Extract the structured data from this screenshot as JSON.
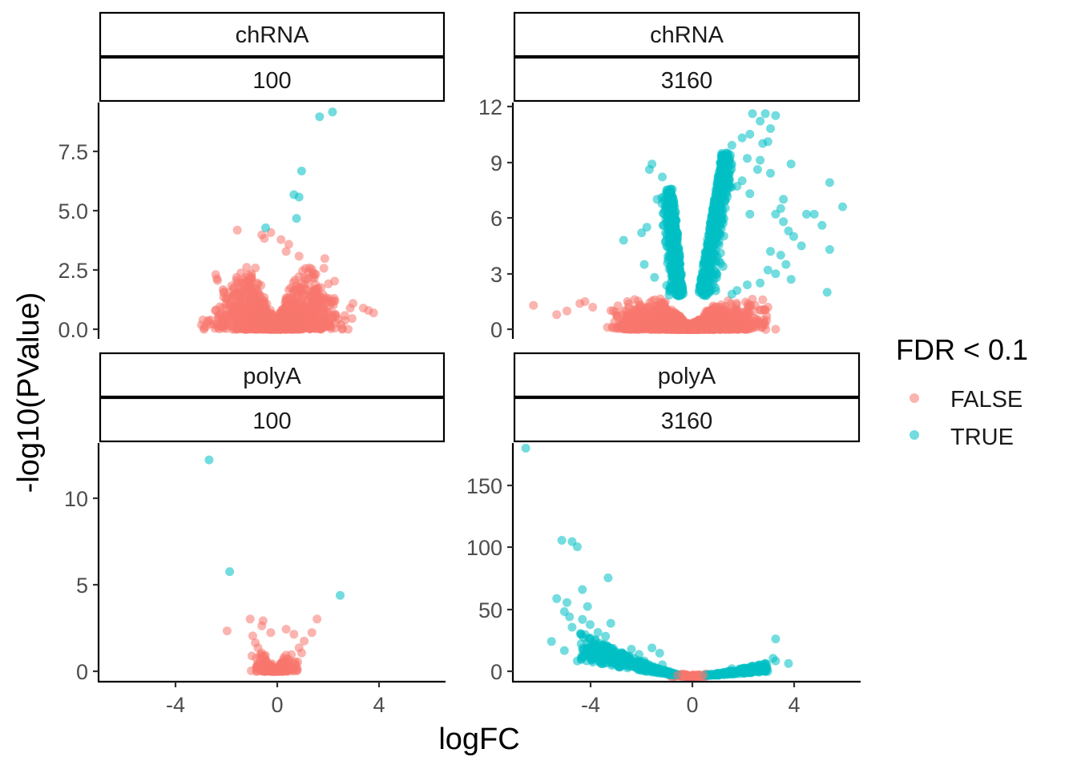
{
  "chart_data": {
    "type": "scatter",
    "xlabel": "logFC",
    "ylabel": "-log10(PValue)",
    "legend": {
      "title": "FDR < 0.1",
      "placement": "right",
      "entries": [
        {
          "label": "FALSE",
          "color": "#F8766D"
        },
        {
          "label": "TRUE",
          "color": "#00BFC4"
        }
      ]
    },
    "xlim": [
      -6.9,
      6.6
    ],
    "xticks": [
      -4,
      0,
      4
    ],
    "xtick_labels": [
      "-4",
      "0",
      "4"
    ],
    "grid": false,
    "point_alpha": 0.55,
    "panels": [
      {
        "strip_top": "chRNA",
        "strip_bottom": "100",
        "ylim": [
          -0.4,
          9.6
        ],
        "yticks": [
          0,
          2.5,
          5,
          7.5
        ],
        "ytick_labels": [
          "0.0",
          "2.5",
          "5.0",
          "7.5"
        ],
        "cloud_spec": {
          "false_n": 1600,
          "false_vmax": 2.8,
          "false_width": 2.2,
          "true_n": 0
        },
        "series": [
          {
            "name": "FALSE",
            "points": [
              [
                -1.5,
                4.2
              ],
              [
                -0.55,
                4.0
              ],
              [
                -0.45,
                3.85
              ],
              [
                -0.2,
                4.1
              ],
              [
                0.2,
                3.8
              ],
              [
                0.5,
                3.6
              ],
              [
                0.9,
                3.1
              ],
              [
                0.4,
                3.3
              ],
              [
                1.9,
                3.0
              ],
              [
                1.3,
                2.6
              ],
              [
                1.1,
                2.2
              ],
              [
                2.1,
                1.0
              ],
              [
                3.0,
                1.1
              ],
              [
                3.4,
                0.9
              ],
              [
                3.6,
                0.8
              ],
              [
                3.8,
                0.7
              ],
              [
                -1.4,
                1.6
              ],
              [
                -1.2,
                2.2
              ],
              [
                -0.9,
                1.4
              ],
              [
                -1.3,
                0.8
              ],
              [
                -1.6,
                0.6
              ],
              [
                -1.8,
                0.5
              ],
              [
                -0.8,
                2.6
              ],
              [
                0.7,
                1.6
              ],
              [
                1.6,
                1.7
              ],
              [
                2.3,
                1.2
              ]
            ]
          },
          {
            "name": "TRUE",
            "points": [
              [
                1.7,
                9.0
              ],
              [
                2.2,
                9.2
              ],
              [
                1.0,
                6.7
              ],
              [
                0.7,
                5.7
              ],
              [
                0.9,
                5.6
              ],
              [
                0.8,
                4.7
              ],
              [
                -0.4,
                4.3
              ]
            ]
          }
        ]
      },
      {
        "strip_top": "chRNA",
        "strip_bottom": "3160",
        "ylim": [
          -0.5,
          12.2
        ],
        "yticks": [
          0,
          3,
          6,
          9,
          12
        ],
        "ytick_labels": [
          "0",
          "3",
          "6",
          "9",
          "12"
        ],
        "cloud_spec": {
          "false_n": 1800,
          "false_vmax": 1.8,
          "false_width": 2.6,
          "true_n": 900,
          "true_vmax": 9.5
        },
        "series": [
          {
            "name": "FALSE",
            "points": [
              [
                -6.1,
                1.3
              ],
              [
                -4.3,
                1.4
              ],
              [
                -4.1,
                1.5
              ],
              [
                -3.8,
                1.2
              ],
              [
                -3.0,
                1.0
              ],
              [
                2.5,
                1.3
              ],
              [
                2.8,
                1.6
              ],
              [
                3.0,
                1.2
              ],
              [
                -5.2,
                0.8
              ],
              [
                -4.8,
                1.0
              ]
            ]
          },
          {
            "name": "TRUE",
            "points": [
              [
                -1.5,
                8.9
              ],
              [
                -1.1,
                8.2
              ],
              [
                -1.6,
                8.6
              ],
              [
                -0.9,
                7.4
              ],
              [
                -1.3,
                7.0
              ],
              [
                -1.0,
                6.4
              ],
              [
                -1.7,
                5.5
              ],
              [
                -1.9,
                5.2
              ],
              [
                -2.6,
                4.8
              ],
              [
                -1.8,
                3.5
              ],
              [
                -1.4,
                2.8
              ],
              [
                -0.5,
                2.2
              ],
              [
                2.4,
                11.6
              ],
              [
                2.9,
                11.6
              ],
              [
                3.3,
                11.5
              ],
              [
                2.7,
                11.2
              ],
              [
                3.1,
                10.8
              ],
              [
                2.3,
                10.5
              ],
              [
                2.0,
                10.3
              ],
              [
                3.0,
                10.1
              ],
              [
                2.8,
                10.0
              ],
              [
                1.6,
                9.9
              ],
              [
                1.4,
                9.5
              ],
              [
                2.2,
                9.2
              ],
              [
                2.7,
                9.1
              ],
              [
                3.9,
                8.9
              ],
              [
                2.6,
                8.6
              ],
              [
                3.1,
                8.4
              ],
              [
                2.0,
                8.0
              ],
              [
                1.8,
                7.7
              ],
              [
                2.3,
                7.3
              ],
              [
                3.6,
                7.0
              ],
              [
                3.5,
                6.5
              ],
              [
                3.3,
                6.2
              ],
              [
                2.3,
                6.2
              ],
              [
                3.6,
                5.8
              ],
              [
                4.5,
                6.2
              ],
              [
                4.0,
                5.0
              ],
              [
                3.8,
                5.3
              ],
              [
                5.4,
                7.9
              ],
              [
                5.9,
                6.6
              ],
              [
                4.8,
                6.2
              ],
              [
                5.1,
                5.6
              ],
              [
                3.1,
                4.2
              ],
              [
                4.3,
                4.5
              ],
              [
                3.5,
                4.0
              ],
              [
                3.7,
                3.5
              ],
              [
                5.4,
                4.3
              ],
              [
                3.0,
                3.2
              ],
              [
                3.3,
                3.0
              ],
              [
                2.7,
                2.5
              ],
              [
                3.9,
                2.7
              ],
              [
                5.3,
                2.0
              ],
              [
                2.2,
                2.4
              ],
              [
                1.8,
                2.1
              ],
              [
                1.6,
                1.9
              ]
            ]
          }
        ]
      },
      {
        "strip_top": "polyA",
        "strip_bottom": "100",
        "ylim": [
          -0.6,
          13.5
        ],
        "yticks": [
          0,
          5,
          10
        ],
        "ytick_labels": [
          "0",
          "5",
          "10"
        ],
        "cloud_spec": {
          "false_n": 220,
          "false_vmax": 1.2,
          "false_width": 0.9,
          "true_n": 0
        },
        "series": [
          {
            "name": "FALSE",
            "points": [
              [
                -1.0,
                3.1
              ],
              [
                -0.5,
                3.0
              ],
              [
                -0.55,
                2.7
              ],
              [
                -0.2,
                2.3
              ],
              [
                0.4,
                2.5
              ],
              [
                0.7,
                2.2
              ],
              [
                1.4,
                2.3
              ],
              [
                1.6,
                3.1
              ],
              [
                -1.9,
                2.4
              ],
              [
                -0.9,
                2.1
              ],
              [
                -0.8,
                1.7
              ],
              [
                -0.7,
                1.4
              ],
              [
                0.9,
                1.4
              ],
              [
                1.1,
                1.8
              ],
              [
                -0.6,
                1.0
              ],
              [
                0.6,
                1.0
              ],
              [
                1.0,
                1.1
              ]
            ]
          },
          {
            "name": "TRUE",
            "points": [
              [
                -2.6,
                12.5
              ],
              [
                -1.8,
                5.9
              ],
              [
                2.5,
                4.5
              ]
            ]
          }
        ]
      },
      {
        "strip_top": "polyA",
        "strip_bottom": "3160",
        "ylim": [
          -4,
          180
        ],
        "yticks": [
          0,
          50,
          100,
          150
        ],
        "ytick_labels": [
          "0",
          "50",
          "100",
          "150"
        ],
        "cloud_spec": {
          "false_n": 140,
          "false_vmax": 2.5,
          "false_width": 0.7,
          "true_n": 520
        },
        "series": [
          {
            "name": "FALSE",
            "points": [
              [
                -0.5,
                1.0
              ],
              [
                -0.3,
                1.2
              ],
              [
                0.2,
                0.8
              ],
              [
                0.5,
                1.0
              ],
              [
                -0.2,
                0.5
              ],
              [
                0.1,
                1.5
              ],
              [
                0.4,
                0.3
              ]
            ]
          },
          {
            "name": "TRUE",
            "points": [
              [
                -6.4,
                176
              ],
              [
                -5.0,
                105
              ],
              [
                -4.6,
                104
              ],
              [
                -4.4,
                100
              ],
              [
                -3.2,
                76
              ],
              [
                -4.2,
                67
              ],
              [
                -5.2,
                60
              ],
              [
                -4.8,
                57
              ],
              [
                -4.9,
                50
              ],
              [
                -4.7,
                46
              ],
              [
                -4.0,
                54
              ],
              [
                -4.6,
                38
              ],
              [
                -3.9,
                40
              ],
              [
                -4.2,
                44
              ],
              [
                -3.1,
                41
              ],
              [
                -3.6,
                34
              ],
              [
                -5.4,
                27
              ],
              [
                -4.9,
                20
              ],
              [
                -4.0,
                22
              ],
              [
                -3.8,
                23
              ],
              [
                -4.4,
                12
              ],
              [
                -3.5,
                20
              ],
              [
                -3.3,
                18
              ],
              [
                -2.9,
                15
              ],
              [
                -2.3,
                21
              ],
              [
                -2.0,
                17
              ],
              [
                -1.5,
                22
              ],
              [
                -1.2,
                18
              ],
              [
                -1.8,
                12
              ],
              [
                -1.1,
                9
              ],
              [
                -3.7,
                28
              ],
              [
                -3.3,
                31
              ],
              [
                3.3,
                29
              ],
              [
                3.8,
                10
              ],
              [
                3.3,
                12
              ],
              [
                3.2,
                14
              ],
              [
                2.9,
                6
              ],
              [
                2.4,
                8
              ],
              [
                1.6,
                6
              ],
              [
                2.1,
                4
              ],
              [
                1.3,
                3
              ]
            ]
          }
        ]
      }
    ]
  }
}
